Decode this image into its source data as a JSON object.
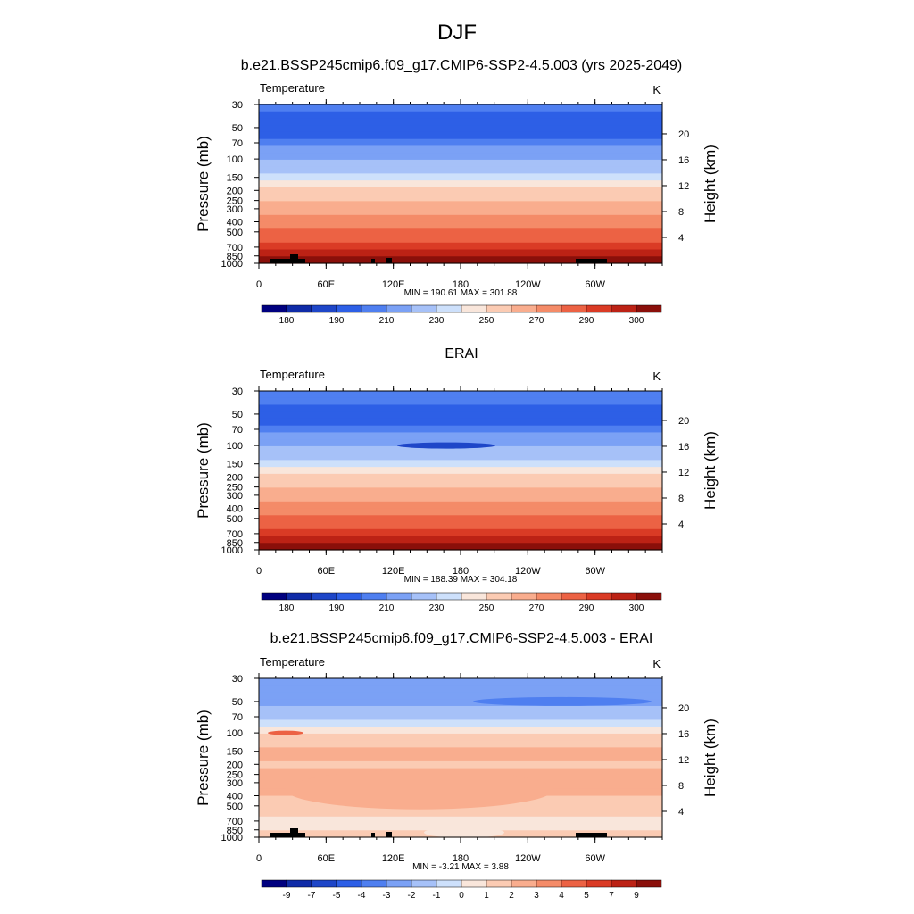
{
  "figure": {
    "title": "DJF",
    "background": "#ffffff"
  },
  "colormap": [
    "#00007f",
    "#0f2ba7",
    "#1e46c8",
    "#2d5fe6",
    "#4f7ff0",
    "#7ba1f5",
    "#a6c1f8",
    "#cde0fb",
    "#f9e6db",
    "#fbcbb3",
    "#f9ad8e",
    "#f48b68",
    "#ec6244",
    "#da3b25",
    "#bc2215",
    "#8a0f0a"
  ],
  "chart_data": [
    {
      "type": "heatmap",
      "panel_title": "b.e21.BSSP245cmip6.f09_g17.CMIP6-SSP2-4.5.003 (yrs 2025-2049)",
      "variable_label": "Temperature",
      "units": "K",
      "ylabel": "Pressure (mb)",
      "ylabel_right": "Height (km)",
      "pressure_ticks": [
        "30",
        "50",
        "70",
        "100",
        "150",
        "200",
        "250",
        "300",
        "400",
        "500",
        "700",
        "850",
        "1000"
      ],
      "height_ticks": [
        "20",
        "16",
        "12",
        "8",
        "4"
      ],
      "lon_ticks": [
        "0",
        "60E",
        "120E",
        "180",
        "120W",
        "60W"
      ],
      "stats": "MIN = 190.61  MAX = 301.88",
      "colorbar_labels": [
        "180",
        "190",
        "210",
        "230",
        "250",
        "270",
        "290",
        "300"
      ],
      "level_colors": [
        4,
        3,
        3,
        3,
        3,
        4,
        5,
        5,
        6,
        6,
        7,
        8,
        9,
        9,
        10,
        10,
        11,
        11,
        12,
        12,
        13,
        14,
        15
      ],
      "topography": true,
      "min": 190.61,
      "max": 301.88
    },
    {
      "type": "heatmap",
      "panel_title": "ERAI",
      "variable_label": "Temperature",
      "units": "K",
      "ylabel": "Pressure (mb)",
      "ylabel_right": "Height (km)",
      "pressure_ticks": [
        "30",
        "50",
        "70",
        "100",
        "150",
        "200",
        "250",
        "300",
        "400",
        "500",
        "700",
        "850",
        "1000"
      ],
      "height_ticks": [
        "20",
        "16",
        "12",
        "8",
        "4"
      ],
      "lon_ticks": [
        "0",
        "60E",
        "120E",
        "180",
        "120W",
        "60W"
      ],
      "stats": "MIN = 188.39  MAX = 304.18",
      "colorbar_labels": [
        "180",
        "190",
        "210",
        "230",
        "250",
        "270",
        "290",
        "300"
      ],
      "level_colors": [
        4,
        4,
        3,
        3,
        3,
        4,
        5,
        5,
        6,
        6,
        7,
        8,
        9,
        9,
        10,
        10,
        11,
        11,
        12,
        12,
        13,
        14,
        15
      ],
      "topography": false,
      "min": 188.39,
      "max": 304.18
    },
    {
      "type": "heatmap",
      "panel_title": "b.e21.BSSP245cmip6.f09_g17.CMIP6-SSP2-4.5.003 - ERAI",
      "variable_label": "Temperature",
      "units": "K",
      "ylabel": "Pressure (mb)",
      "ylabel_right": "Height (km)",
      "pressure_ticks": [
        "30",
        "50",
        "70",
        "100",
        "150",
        "200",
        "250",
        "300",
        "400",
        "500",
        "700",
        "850",
        "1000"
      ],
      "height_ticks": [
        "20",
        "16",
        "12",
        "8",
        "4"
      ],
      "lon_ticks": [
        "0",
        "60E",
        "120E",
        "180",
        "120W",
        "60W"
      ],
      "stats": "MIN = -3.21  MAX =   3.88",
      "colorbar_labels": [
        "-9",
        "-7",
        "-5",
        "-4",
        "-3",
        "-2",
        "-1",
        "0",
        "1",
        "2",
        "3",
        "4",
        "5",
        "7",
        "9"
      ],
      "level_colors": [
        5,
        5,
        5,
        5,
        6,
        6,
        7,
        8,
        9,
        9,
        10,
        10,
        9,
        10,
        10,
        10,
        10,
        9,
        9,
        9,
        8,
        8,
        9
      ],
      "topography": true,
      "min": -3.21,
      "max": 3.88
    }
  ]
}
